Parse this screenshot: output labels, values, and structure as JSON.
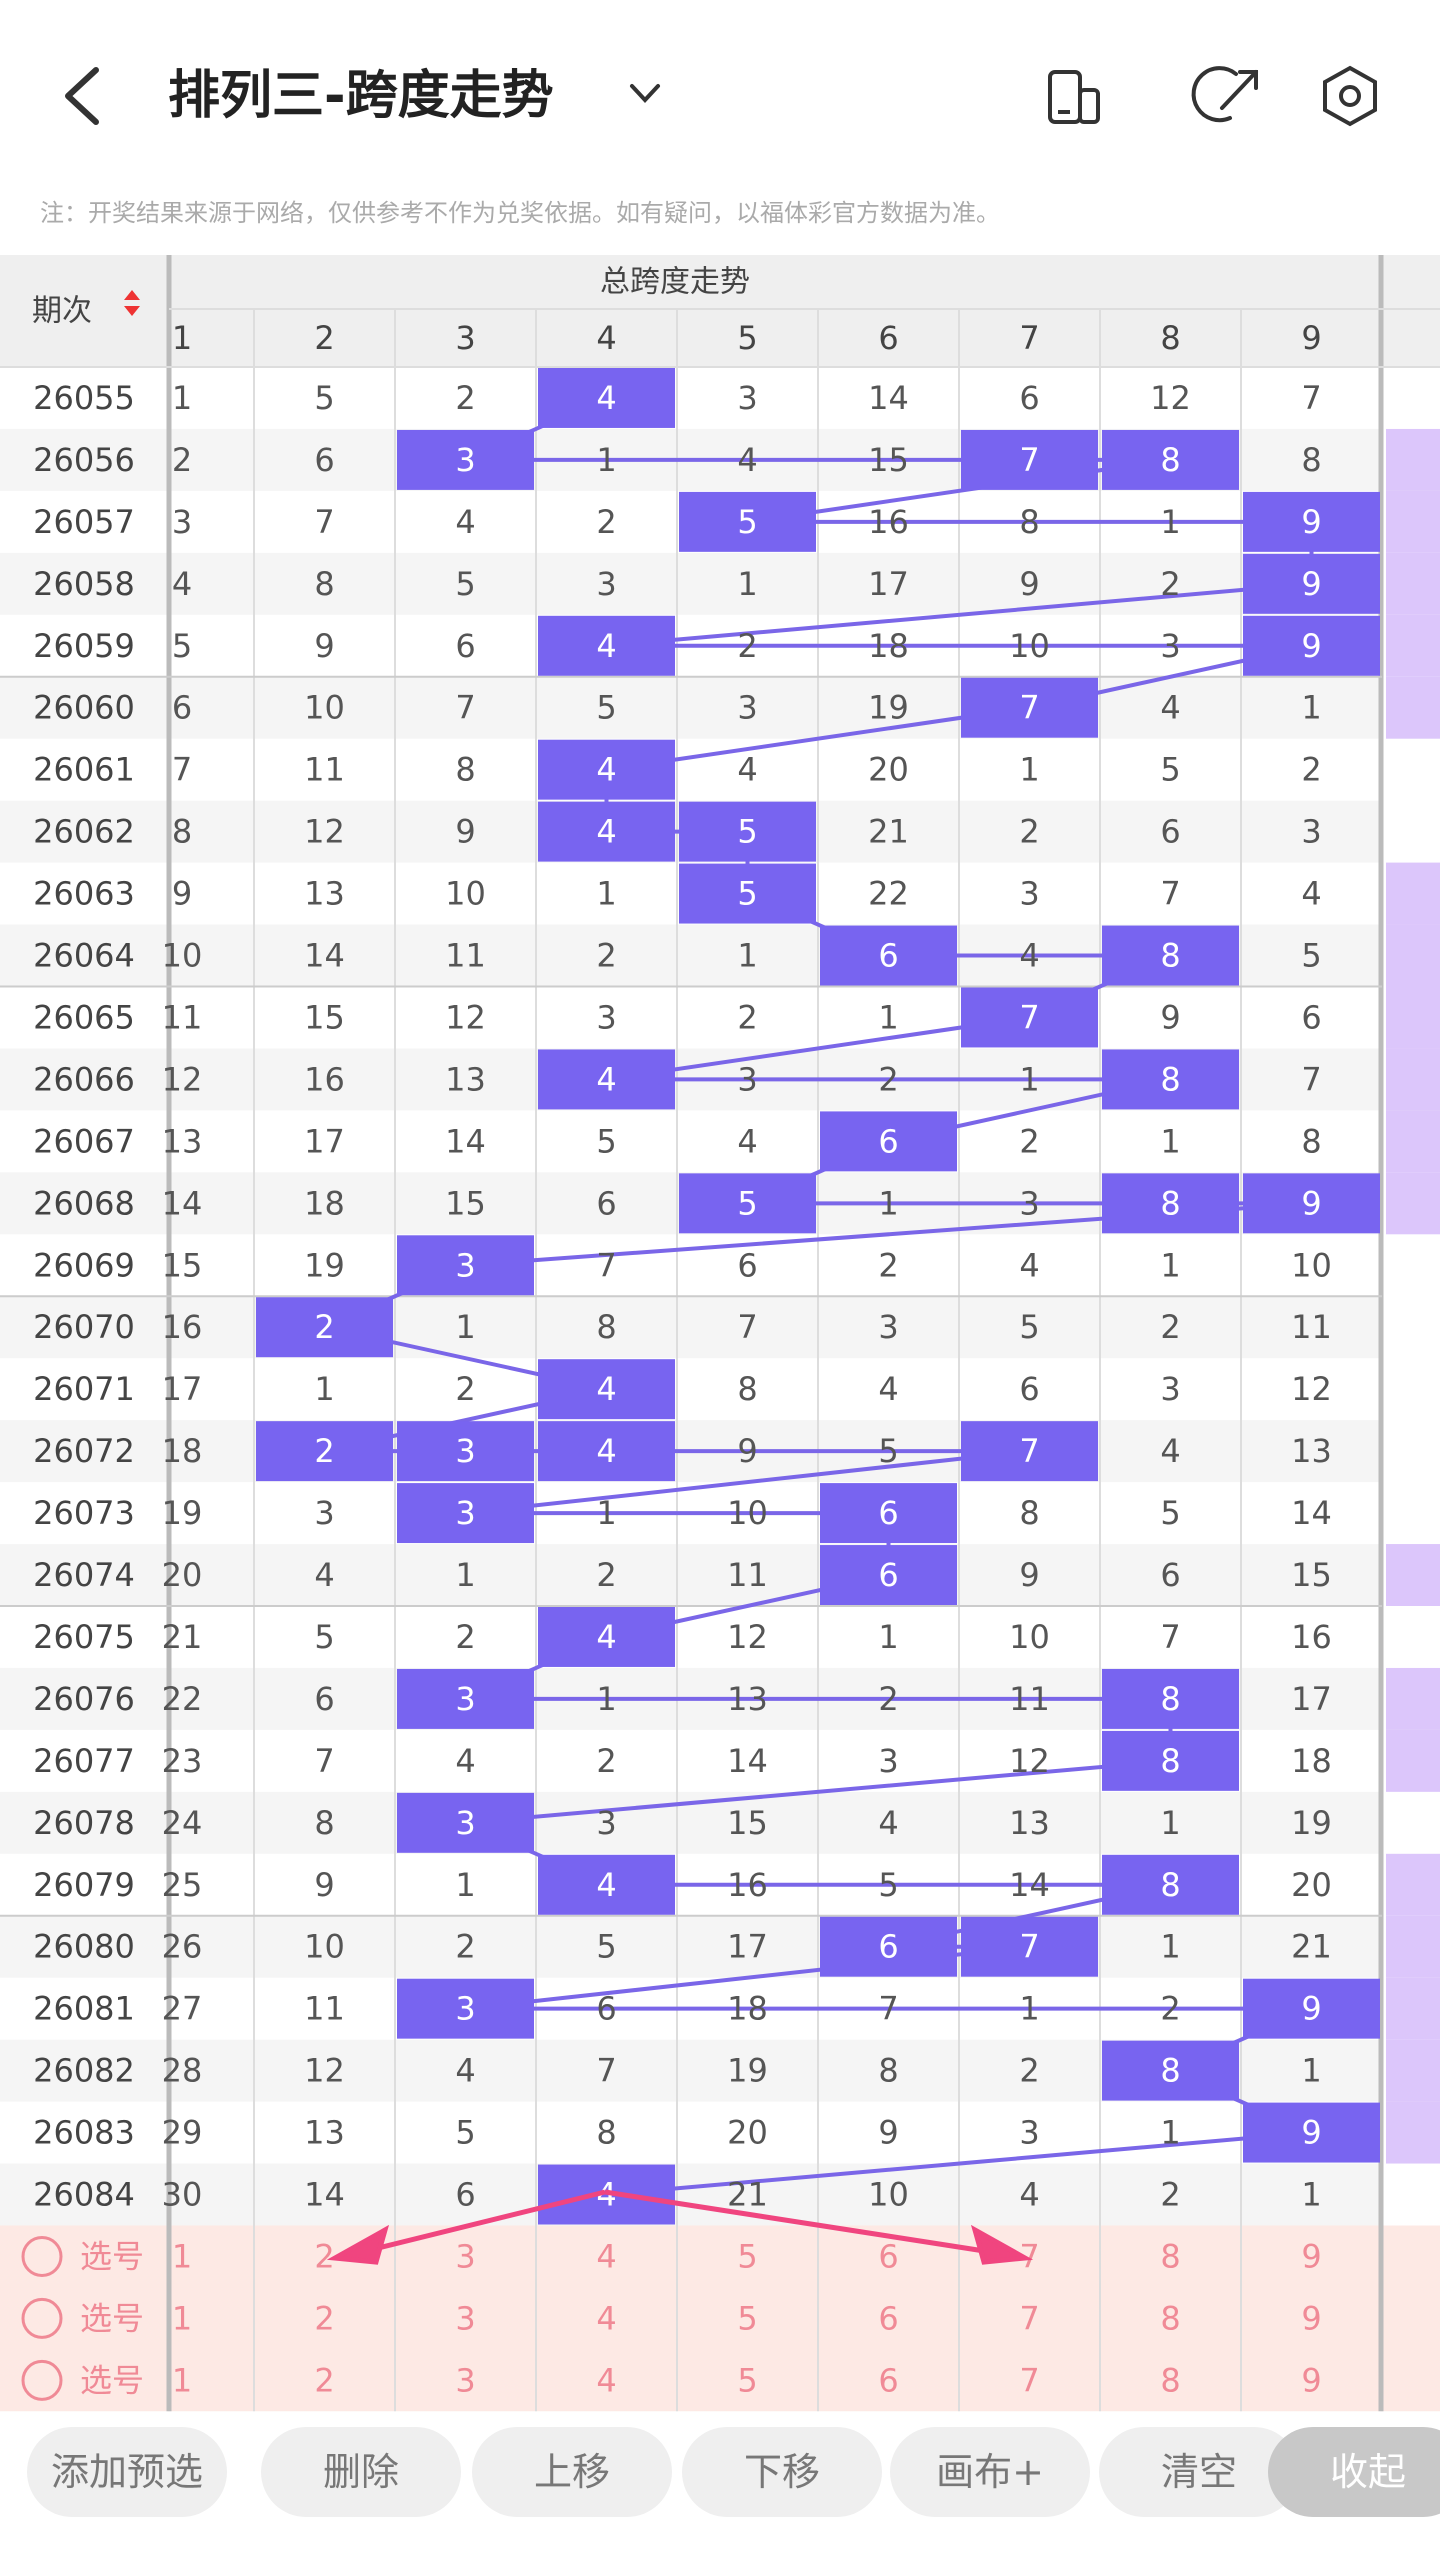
{
  "header": {
    "title": "排列三-跨度走势"
  },
  "note": "注：开奖结果来源于网络，仅供参考不作为兑奖依据。如有疑问，以福体彩官方数据为准。",
  "table": {
    "period_header": "期次",
    "group_header": "总跨度走势",
    "columns": [
      1,
      2,
      3,
      4,
      5,
      6,
      7,
      8,
      9
    ],
    "rows": [
      {
        "period": "26055",
        "values": [
          1,
          5,
          2,
          4,
          3,
          14,
          6,
          12,
          7
        ]
      },
      {
        "period": "26056",
        "values": [
          2,
          6,
          3,
          1,
          4,
          15,
          7,
          8,
          8
        ]
      },
      {
        "period": "26057",
        "values": [
          3,
          7,
          4,
          2,
          5,
          16,
          8,
          1,
          9
        ]
      },
      {
        "period": "26058",
        "values": [
          4,
          8,
          5,
          3,
          1,
          17,
          9,
          2,
          9
        ]
      },
      {
        "period": "26059",
        "values": [
          5,
          9,
          6,
          4,
          2,
          18,
          10,
          3,
          9
        ]
      },
      {
        "period": "26060",
        "values": [
          6,
          10,
          7,
          5,
          3,
          19,
          7,
          4,
          1
        ]
      },
      {
        "period": "26061",
        "values": [
          7,
          11,
          8,
          4,
          4,
          20,
          1,
          5,
          2
        ]
      },
      {
        "period": "26062",
        "values": [
          8,
          12,
          9,
          4,
          5,
          21,
          2,
          6,
          3
        ]
      },
      {
        "period": "26063",
        "values": [
          9,
          13,
          10,
          1,
          5,
          22,
          3,
          7,
          4
        ]
      },
      {
        "period": "26064",
        "values": [
          10,
          14,
          11,
          2,
          1,
          6,
          4,
          8,
          5
        ]
      },
      {
        "period": "26065",
        "values": [
          11,
          15,
          12,
          3,
          2,
          1,
          7,
          9,
          6
        ]
      },
      {
        "period": "26066",
        "values": [
          12,
          16,
          13,
          4,
          3,
          2,
          1,
          8,
          7
        ]
      },
      {
        "period": "26067",
        "values": [
          13,
          17,
          14,
          5,
          4,
          6,
          2,
          1,
          8
        ]
      },
      {
        "period": "26068",
        "values": [
          14,
          18,
          15,
          6,
          5,
          1,
          3,
          8,
          9
        ]
      },
      {
        "period": "26069",
        "values": [
          15,
          19,
          3,
          7,
          6,
          2,
          4,
          1,
          10
        ]
      },
      {
        "period": "26070",
        "values": [
          16,
          2,
          1,
          8,
          7,
          3,
          5,
          2,
          11
        ]
      },
      {
        "period": "26071",
        "values": [
          17,
          1,
          2,
          4,
          8,
          4,
          6,
          3,
          12
        ]
      },
      {
        "period": "26072",
        "values": [
          18,
          2,
          3,
          4,
          9,
          5,
          7,
          4,
          13
        ]
      },
      {
        "period": "26073",
        "values": [
          19,
          3,
          3,
          1,
          10,
          6,
          8,
          5,
          14
        ]
      },
      {
        "period": "26074",
        "values": [
          20,
          4,
          1,
          2,
          11,
          6,
          9,
          6,
          15
        ]
      },
      {
        "period": "26075",
        "values": [
          21,
          5,
          2,
          4,
          12,
          1,
          10,
          7,
          16
        ]
      },
      {
        "period": "26076",
        "values": [
          22,
          6,
          3,
          1,
          13,
          2,
          11,
          8,
          17
        ]
      },
      {
        "period": "26077",
        "values": [
          23,
          7,
          4,
          2,
          14,
          3,
          12,
          8,
          18
        ]
      },
      {
        "period": "26078",
        "values": [
          24,
          8,
          3,
          3,
          15,
          4,
          13,
          1,
          19
        ]
      },
      {
        "period": "26079",
        "values": [
          25,
          9,
          1,
          4,
          16,
          5,
          14,
          8,
          20
        ]
      },
      {
        "period": "26080",
        "values": [
          26,
          10,
          2,
          5,
          17,
          6,
          7,
          1,
          21
        ]
      },
      {
        "period": "26081",
        "values": [
          27,
          11,
          3,
          6,
          18,
          7,
          1,
          2,
          9
        ]
      },
      {
        "period": "26082",
        "values": [
          28,
          12,
          4,
          7,
          19,
          8,
          2,
          8,
          1
        ]
      },
      {
        "period": "26083",
        "values": [
          29,
          13,
          5,
          8,
          20,
          9,
          3,
          1,
          9
        ]
      },
      {
        "period": "26084",
        "values": [
          30,
          14,
          6,
          4,
          21,
          10,
          4,
          2,
          1
        ]
      }
    ]
  },
  "selection": {
    "label": "选号",
    "rows": [
      [
        1,
        2,
        3,
        4,
        5,
        6,
        7,
        8,
        9
      ],
      [
        1,
        2,
        3,
        4,
        5,
        6,
        7,
        8,
        9
      ],
      [
        1,
        2,
        3,
        4,
        5,
        6,
        7,
        8,
        9
      ]
    ]
  },
  "buttons": [
    "添加预选",
    "删除",
    "上移",
    "下移",
    "画布+",
    "清空",
    "收起"
  ]
}
